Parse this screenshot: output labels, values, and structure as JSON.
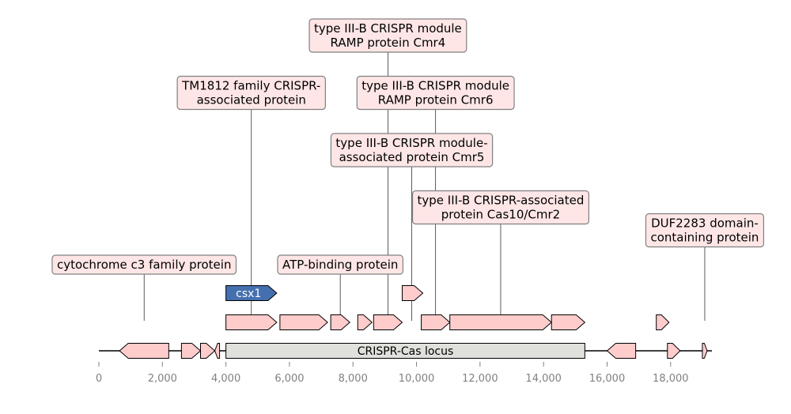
{
  "locus": {
    "label": "CRISPR-Cas locus",
    "start": 4000,
    "end": 15300,
    "color": "#e0e0dc"
  },
  "axis": {
    "min": 0,
    "max": 19300,
    "ticks": [
      0,
      2000,
      4000,
      6000,
      8000,
      10000,
      12000,
      14000,
      16000,
      18000
    ],
    "tick_labels": [
      "0",
      "2,000",
      "4,000",
      "6,000",
      "8,000",
      "10,000",
      "12,000",
      "14,000",
      "16,000",
      "18,000"
    ]
  },
  "colors": {
    "gene_fill": "#ffcccc",
    "gene_highlight": "#4570b0",
    "label_fill": "#ffe6e6",
    "label_border": "#808080",
    "axis_text": "#808080"
  },
  "genes": [
    {
      "id": "g1",
      "start": 650,
      "end": 2200,
      "strand": -1,
      "row": 0
    },
    {
      "id": "g2",
      "start": 2600,
      "end": 3200,
      "strand": 1,
      "row": 0
    },
    {
      "id": "g3",
      "start": 3200,
      "end": 3650,
      "strand": 1,
      "row": 0
    },
    {
      "id": "g4",
      "start": 3650,
      "end": 3800,
      "strand": -1,
      "row": 0
    },
    {
      "id": "g5",
      "start": 16000,
      "end": 16900,
      "strand": -1,
      "row": 0
    },
    {
      "id": "g6",
      "start": 17900,
      "end": 18300,
      "strand": 1,
      "row": 0
    },
    {
      "id": "g7",
      "start": 19000,
      "end": 19150,
      "strand": 1,
      "row": 0
    },
    {
      "id": "g8",
      "start": 4000,
      "end": 5600,
      "strand": 1,
      "row": 1
    },
    {
      "id": "g9",
      "start": 5700,
      "end": 7200,
      "strand": 1,
      "row": 1
    },
    {
      "id": "g10",
      "start": 7300,
      "end": 7900,
      "strand": 1,
      "row": 1
    },
    {
      "id": "g11",
      "start": 8150,
      "end": 8600,
      "strand": 1,
      "row": 1
    },
    {
      "id": "g12",
      "start": 8650,
      "end": 9550,
      "strand": 1,
      "row": 1
    },
    {
      "id": "g13",
      "start": 10150,
      "end": 11050,
      "strand": 1,
      "row": 1
    },
    {
      "id": "g14",
      "start": 11050,
      "end": 14250,
      "strand": 1,
      "row": 1
    },
    {
      "id": "g15",
      "start": 14250,
      "end": 15300,
      "strand": 1,
      "row": 1
    },
    {
      "id": "g16",
      "start": 17550,
      "end": 17950,
      "strand": 1,
      "row": 1
    },
    {
      "id": "g17",
      "start": 4000,
      "end": 5600,
      "strand": 1,
      "row": 2,
      "label": "csx1",
      "highlight": true
    },
    {
      "id": "g18",
      "start": 9550,
      "end": 10200,
      "strand": 1,
      "row": 2
    }
  ],
  "annotations": [
    {
      "lines": [
        "cytochrome c3 family protein"
      ],
      "x": 1425,
      "level": 0
    },
    {
      "lines": [
        "TM1812 family CRISPR-",
        "associated protein"
      ],
      "x": 4800,
      "level": 3
    },
    {
      "lines": [
        "ATP-binding protein"
      ],
      "x": 7600,
      "level": 0
    },
    {
      "lines": [
        "type III-B CRISPR module",
        "RAMP protein Cmr4"
      ],
      "x": 9100,
      "level": 4
    },
    {
      "lines": [
        "type III-B CRISPR module",
        "RAMP protein Cmr6"
      ],
      "x": 10600,
      "level": 3
    },
    {
      "lines": [
        "type III-B CRISPR module-",
        "associated protein Cmr5"
      ],
      "x": 9850,
      "level": 2
    },
    {
      "lines": [
        "type III-B CRISPR-associated",
        "protein Cas10/Cmr2"
      ],
      "x": 12650,
      "level": 1
    },
    {
      "lines": [
        "DUF2283 domain-",
        "containing protein"
      ],
      "x": 19075,
      "level": 0.6
    }
  ]
}
